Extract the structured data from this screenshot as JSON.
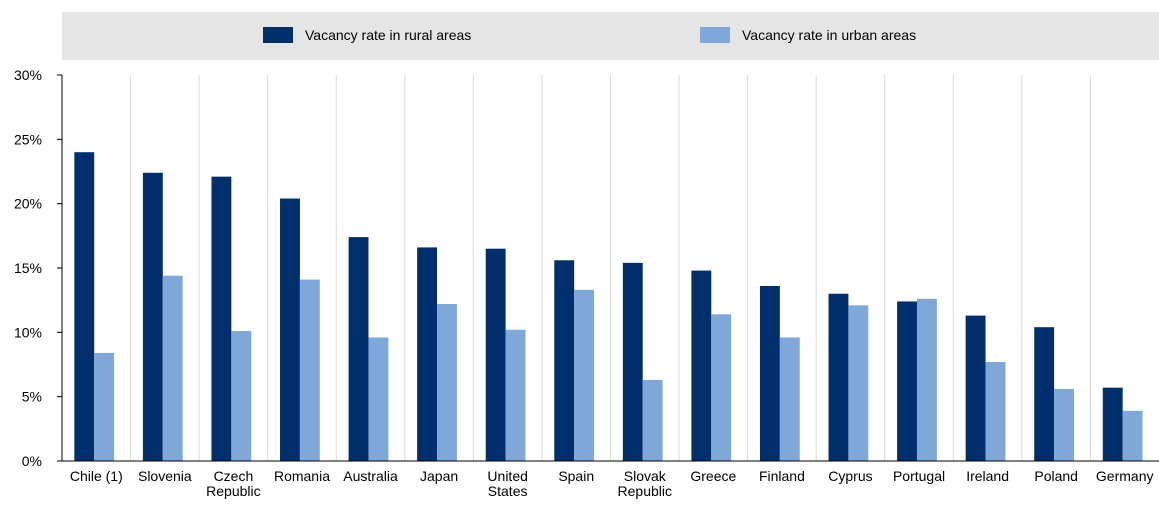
{
  "chart_data": {
    "type": "bar",
    "categories": [
      "Chile (1)",
      "Slovenia",
      "Czech Republic",
      "Romania",
      "Australia",
      "Japan",
      "United States",
      "Spain",
      "Slovak Republic",
      "Greece",
      "Finland",
      "Cyprus",
      "Portugal",
      "Ireland",
      "Poland",
      "Germany"
    ],
    "series": [
      {
        "name": "Vacancy rate in rural areas",
        "color": "#002f6c",
        "values": [
          24.0,
          22.4,
          22.1,
          20.4,
          17.4,
          16.6,
          16.5,
          15.6,
          15.4,
          14.8,
          13.6,
          13.0,
          12.4,
          11.3,
          10.4,
          5.7
        ]
      },
      {
        "name": "Vacancy rate in urban areas",
        "color": "#7fa8d9",
        "values": [
          8.4,
          14.4,
          10.1,
          14.1,
          9.6,
          12.2,
          10.2,
          13.3,
          6.3,
          11.4,
          9.6,
          12.1,
          12.6,
          7.7,
          5.6,
          3.9
        ]
      }
    ],
    "ylim": [
      0,
      30
    ],
    "yticks": [
      {
        "value": 0,
        "label": "0%"
      },
      {
        "value": 5,
        "label": "5%"
      },
      {
        "value": 10,
        "label": "10%"
      },
      {
        "value": 15,
        "label": "15%"
      },
      {
        "value": 20,
        "label": "20%"
      },
      {
        "value": 25,
        "label": "25%"
      },
      {
        "value": 30,
        "label": "30%"
      }
    ],
    "legend": "top"
  }
}
